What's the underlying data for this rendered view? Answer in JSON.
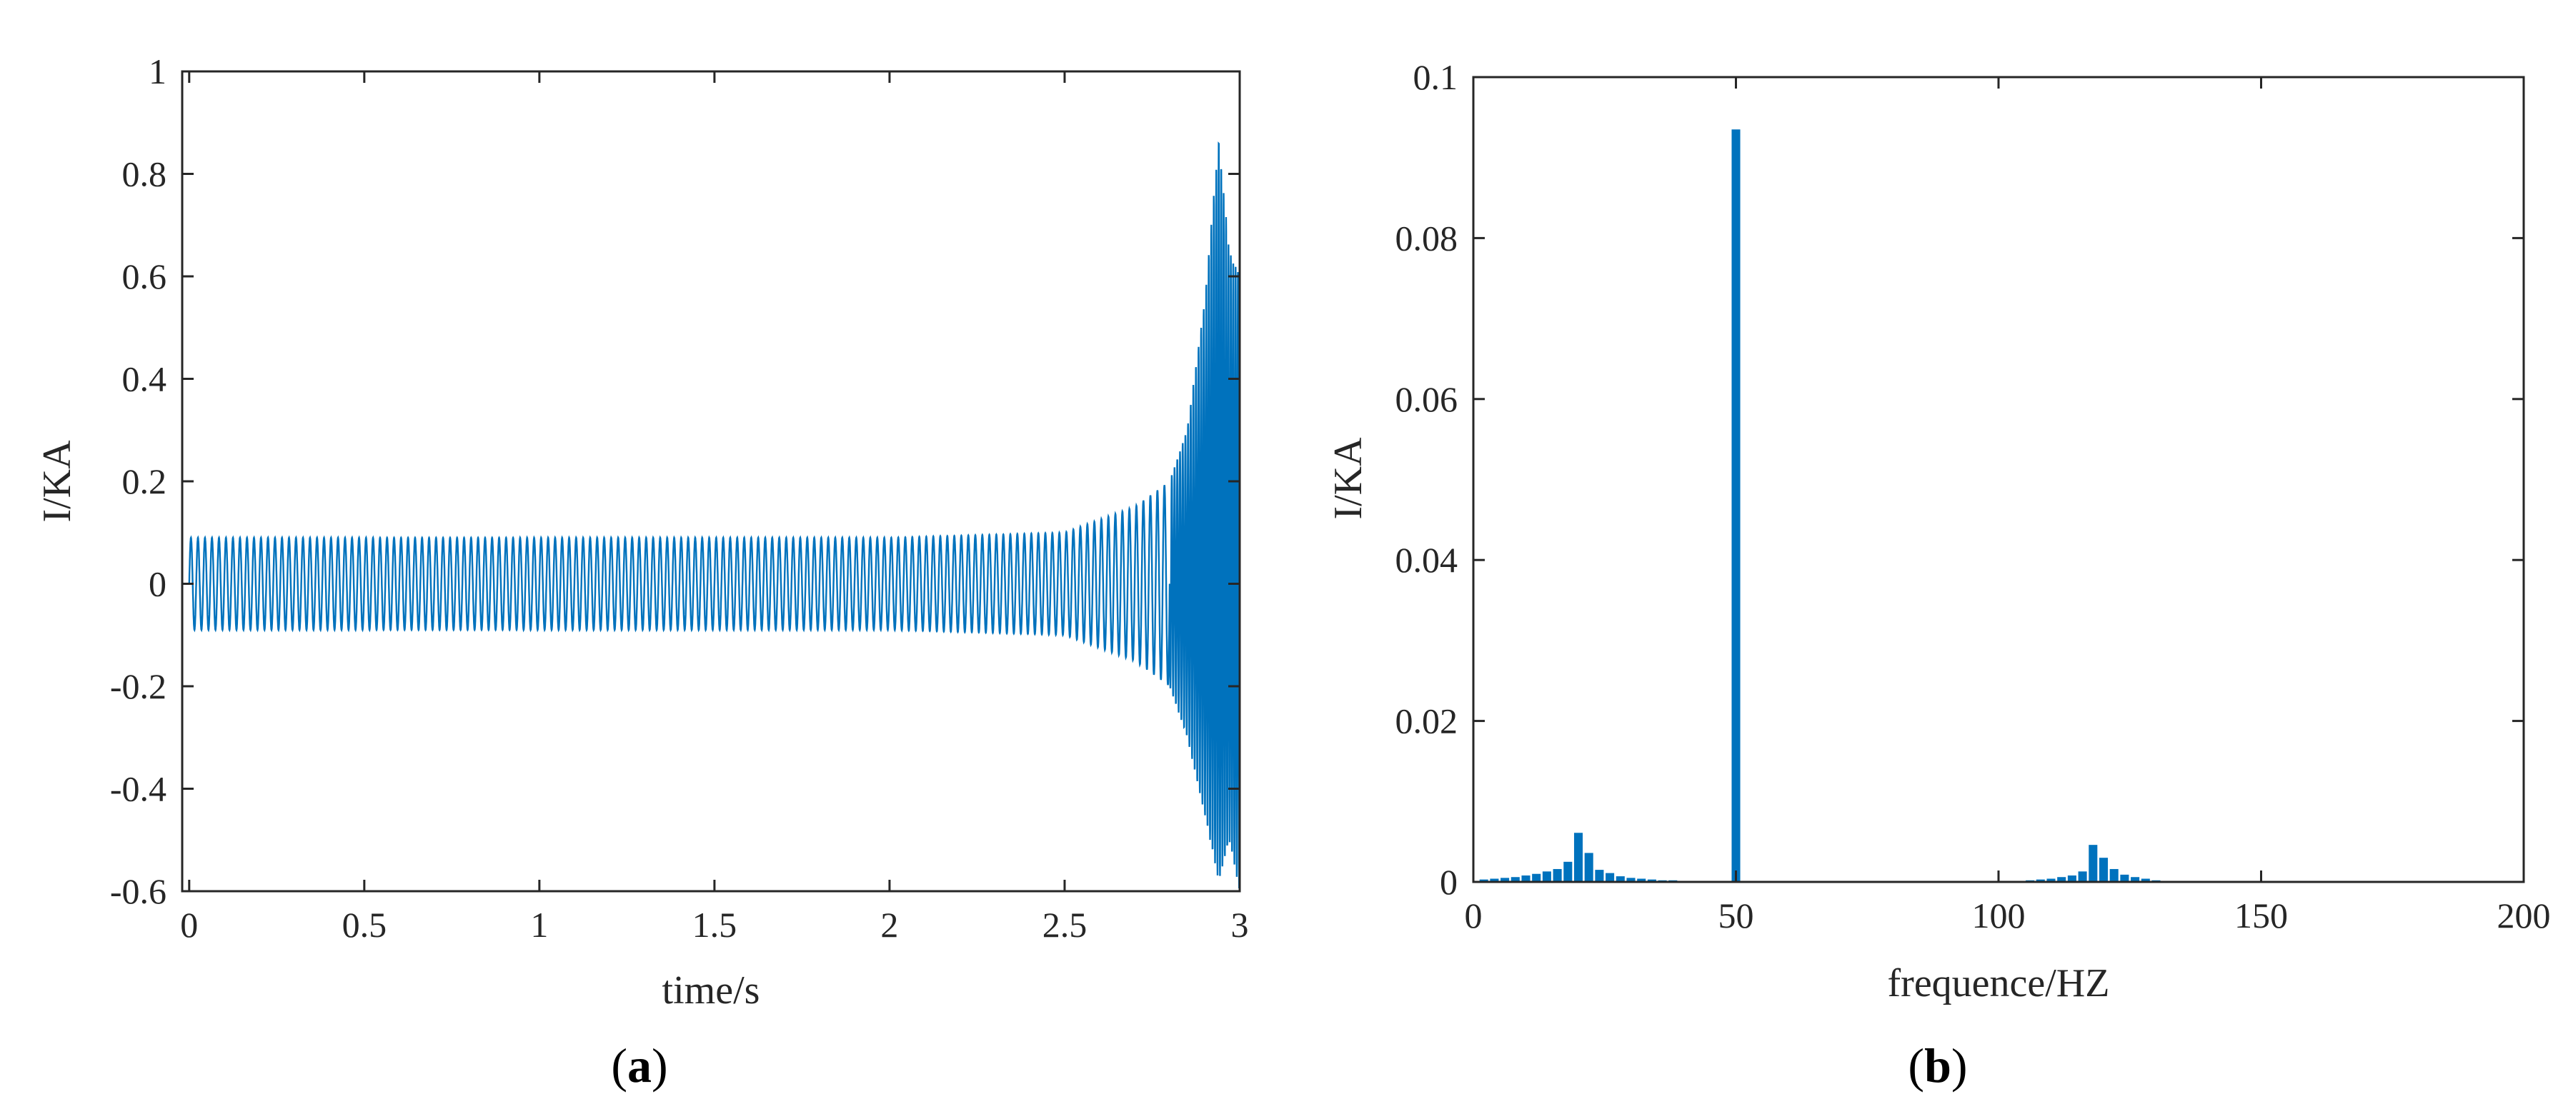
{
  "colors": {
    "series": "#0072BD",
    "axes": "#262626",
    "background": "#ffffff"
  },
  "chart_data": [
    {
      "type": "line",
      "panel_label": "a",
      "xlabel": "time/s",
      "ylabel": "I/KA",
      "xlim": [
        -0.02,
        3.0
      ],
      "ylim": [
        -0.6,
        1.0
      ],
      "xticks": [
        "0",
        "0.5",
        "1",
        "1.5",
        "2",
        "2.5",
        "3"
      ],
      "yticks": [
        "-0.6",
        "-0.4",
        "-0.2",
        "0",
        "0.2",
        "0.4",
        "0.6",
        "0.8",
        "1"
      ],
      "grid": false,
      "series": [
        {
          "signal_frequency_hz": 50,
          "steady_amplitude": 0.09,
          "envelope": {
            "t": [
              0,
              2.0,
              2.5,
              2.7,
              2.8,
              2.85,
              2.9,
              2.94,
              2.97,
              3.0
            ],
            "upper": [
              0.09,
              0.09,
              0.1,
              0.15,
              0.2,
              0.3,
              0.55,
              0.87,
              0.65,
              0.6
            ],
            "lower": [
              -0.09,
              -0.09,
              -0.1,
              -0.15,
              -0.2,
              -0.3,
              -0.45,
              -0.58,
              -0.5,
              -0.6
            ]
          }
        }
      ]
    },
    {
      "type": "bar",
      "panel_label": "b",
      "xlabel": "frequence/HZ",
      "ylabel": "I/KA",
      "xlim": [
        0,
        200
      ],
      "ylim": [
        0,
        0.1
      ],
      "xticks": [
        "0",
        "50",
        "100",
        "150",
        "200"
      ],
      "yticks": [
        "0",
        "0.02",
        "0.04",
        "0.06",
        "0.08",
        "0.1"
      ],
      "grid": false,
      "x": [
        2,
        4,
        6,
        8,
        10,
        12,
        14,
        16,
        18,
        20,
        22,
        24,
        26,
        28,
        30,
        32,
        34,
        36,
        38,
        40,
        42,
        44,
        46,
        48,
        50,
        52,
        54,
        56,
        58,
        60,
        62,
        64,
        66,
        68,
        70,
        72,
        74,
        76,
        78,
        80,
        82,
        84,
        86,
        88,
        90,
        92,
        94,
        96,
        98,
        100,
        102,
        104,
        106,
        108,
        110,
        112,
        114,
        116,
        118,
        120,
        122,
        124,
        126,
        128,
        130,
        132,
        134,
        136,
        138,
        140,
        142,
        144,
        146,
        148,
        150,
        152,
        154,
        156,
        158,
        160,
        162,
        164,
        166,
        168,
        170,
        172,
        174,
        176,
        178,
        180,
        182,
        184,
        186,
        188,
        190,
        192,
        194,
        196,
        198
      ],
      "values": [
        0.0003,
        0.0004,
        0.0005,
        0.0006,
        0.0008,
        0.001,
        0.0013,
        0.0016,
        0.0025,
        0.0061,
        0.0036,
        0.0015,
        0.0011,
        0.0007,
        0.0005,
        0.0004,
        0.0003,
        0.0002,
        0.0002,
        0.0001,
        0.0001,
        0.0001,
        0.0001,
        0.0001,
        0.0935,
        0,
        0,
        0,
        0,
        0,
        0,
        0,
        0,
        0,
        0,
        0,
        0,
        0,
        0,
        0,
        0,
        0,
        0,
        0,
        0,
        0,
        0,
        0,
        0,
        0,
        0,
        0,
        0.0002,
        0.0003,
        0.0004,
        0.0006,
        0.0008,
        0.0013,
        0.0046,
        0.003,
        0.0016,
        0.0009,
        0.0006,
        0.0004,
        0.0002,
        0.0001,
        0.0001,
        0,
        0,
        0,
        0,
        0,
        0,
        0,
        0,
        0,
        0,
        0,
        0,
        0,
        0,
        0,
        0,
        0,
        0,
        0,
        0,
        0,
        0,
        0,
        0,
        0,
        0,
        0,
        0,
        0,
        0,
        0,
        0
      ]
    }
  ]
}
